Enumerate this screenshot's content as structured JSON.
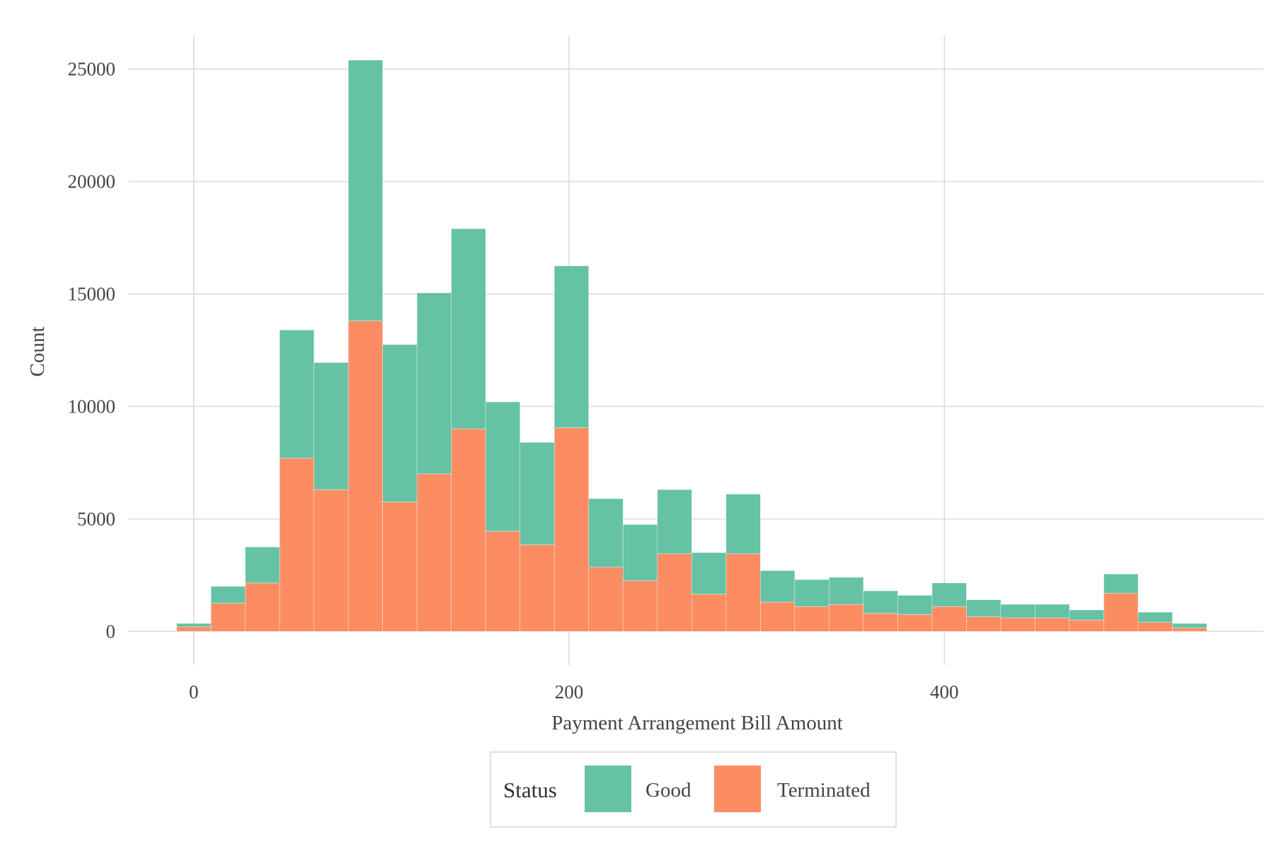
{
  "chart_data": {
    "type": "bar",
    "subtype": "stacked histogram",
    "title": "",
    "xlabel": "Payment Arrangement Bill Amount",
    "ylabel": "Count",
    "xlim": [
      -35,
      570
    ],
    "ylim": [
      -1500,
      26500
    ],
    "x_ticks": [
      0,
      200,
      400
    ],
    "x_tick_labels": [
      "0",
      "200",
      "400"
    ],
    "y_ticks": [
      0,
      5000,
      10000,
      15000,
      20000,
      25000
    ],
    "y_tick_labels": [
      "0",
      "5000",
      "10000",
      "15000",
      "20000",
      "25000"
    ],
    "grid": true,
    "bin_width": 18.3,
    "bin_centers": [
      0,
      18.3,
      36.6,
      54.9,
      73.2,
      91.5,
      109.8,
      128.1,
      146.4,
      164.7,
      183,
      201.3,
      219.6,
      237.9,
      256.2,
      274.5,
      292.8,
      311.1,
      329.4,
      347.7,
      366,
      384.3,
      402.6,
      420.9,
      439.2,
      457.5,
      475.8,
      494.1,
      512.4,
      530.7
    ],
    "series": [
      {
        "name": "Terminated",
        "color": "#fc8d62",
        "values": [
          200,
          1250,
          2150,
          7700,
          6300,
          13800,
          5750,
          7000,
          9000,
          4450,
          3850,
          9050,
          2850,
          2250,
          3450,
          1650,
          3450,
          1300,
          1100,
          1200,
          800,
          750,
          1100,
          650,
          600,
          600,
          500,
          1700,
          400,
          150
        ]
      },
      {
        "name": "Good",
        "color": "#66c2a5",
        "values": [
          150,
          750,
          1600,
          5700,
          5650,
          11600,
          7000,
          8050,
          8900,
          5750,
          4550,
          7200,
          3050,
          2500,
          2850,
          1850,
          2650,
          1400,
          1200,
          1200,
          1000,
          850,
          1050,
          750,
          600,
          600,
          450,
          850,
          450,
          200
        ]
      }
    ],
    "legend": {
      "title": "Status",
      "position": "bottom",
      "items": [
        {
          "label": "Good",
          "color": "#66c2a5"
        },
        {
          "label": "Terminated",
          "color": "#fc8d62"
        }
      ]
    }
  }
}
